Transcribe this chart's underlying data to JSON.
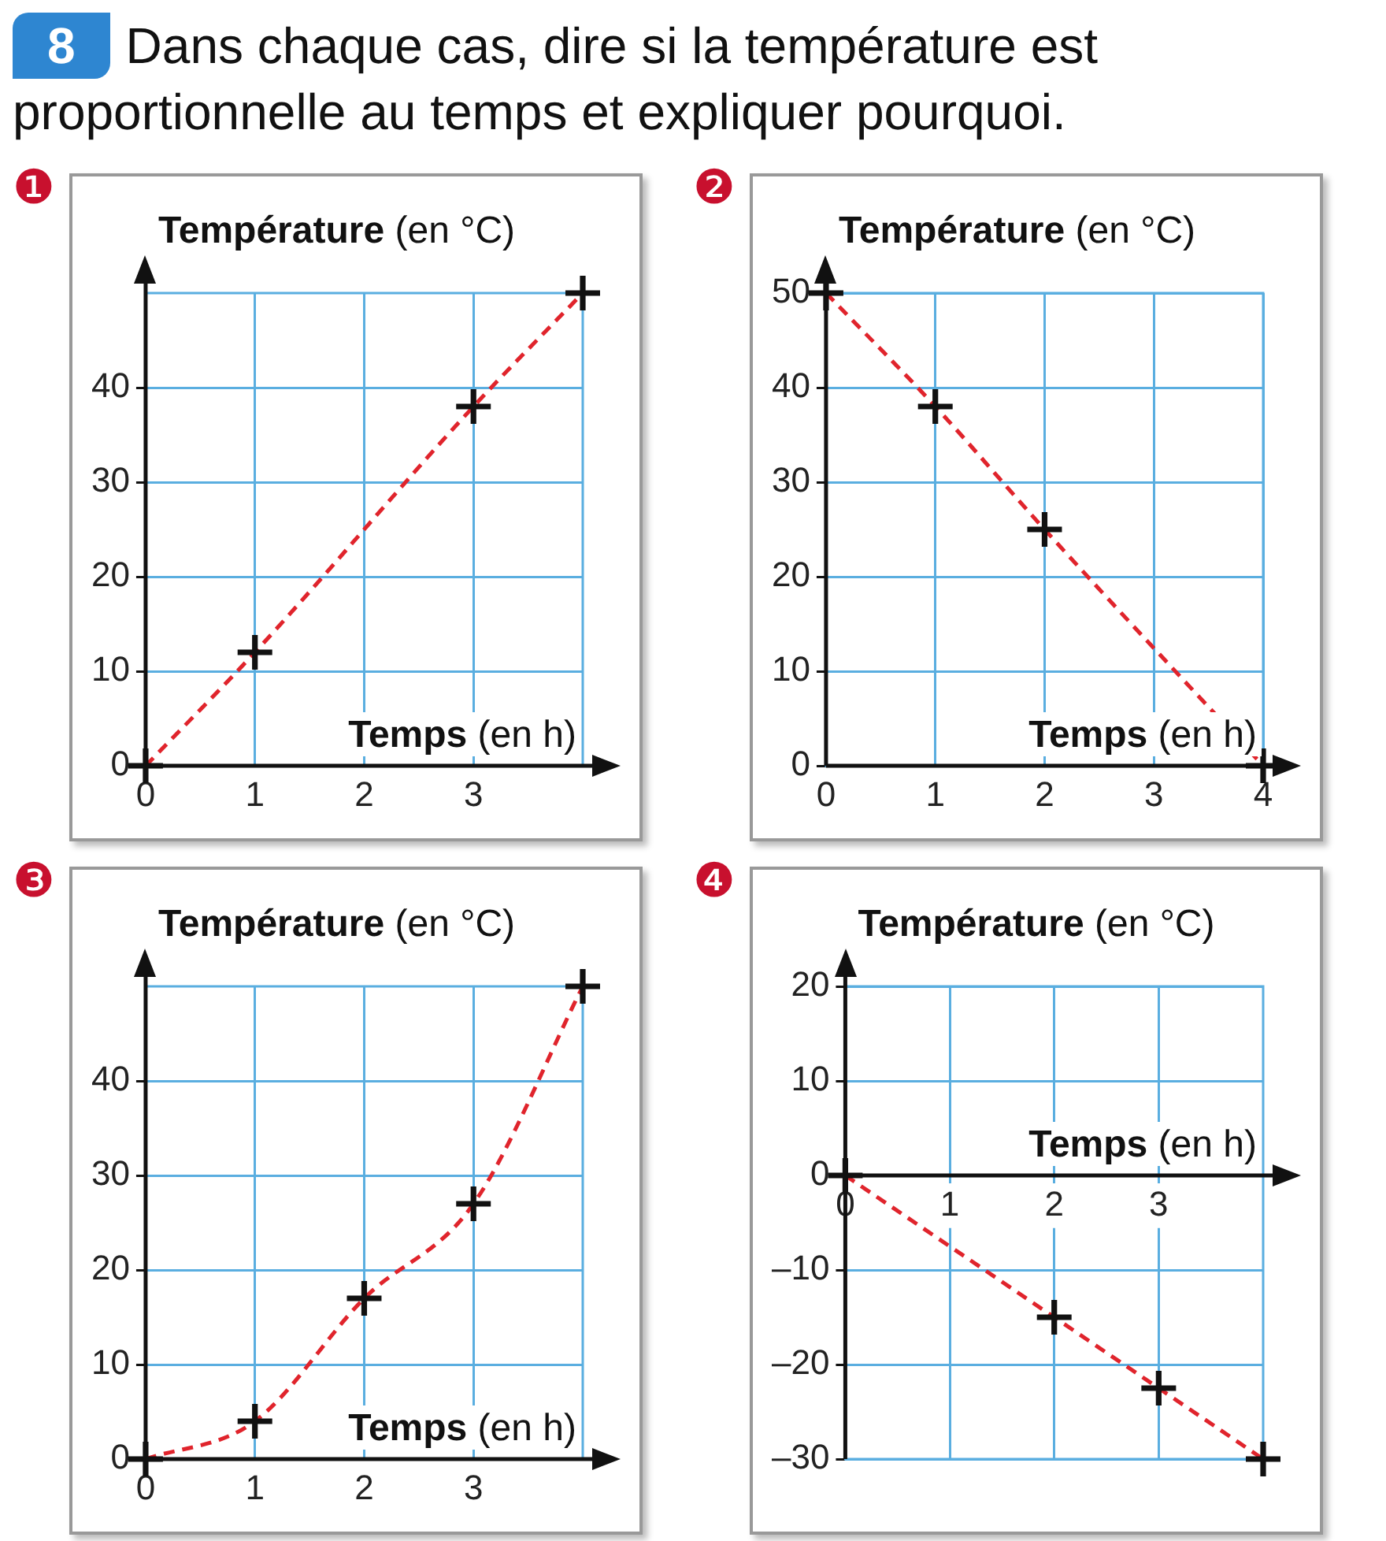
{
  "chart_data": [
    {
      "type": "line",
      "title": "❶",
      "annotations": [
        "8",
        "Dans chaque cas, dire si la température est proportionnelle au temps et expliquer pourquoi."
      ],
      "xlabel": "Temps (en h)",
      "ylabel": "Température (en °C)",
      "x": [
        0,
        1,
        3,
        4
      ],
      "xlim": [
        0,
        4
      ],
      "ylim": [
        0,
        50
      ],
      "xticks": [
        0,
        1,
        2,
        3
      ],
      "yticks": [
        0,
        10,
        20,
        30,
        40
      ],
      "grid": true,
      "line_style": "dashed",
      "series": [
        {
          "type": "line",
          "color": "#e0242c",
          "values": [
            0,
            12,
            38,
            50
          ],
          "marker": "none"
        },
        {
          "type": "scatter",
          "color": "#111111",
          "values": [
            0,
            12,
            38,
            50
          ],
          "marker": "cross"
        }
      ]
    },
    {
      "type": "line",
      "title": "❷",
      "xlabel": "Temps (en h)",
      "ylabel": "Température (en °C)",
      "x": [
        0,
        1,
        2,
        4
      ],
      "xlim": [
        0,
        4
      ],
      "ylim": [
        0,
        50
      ],
      "xticks": [
        0,
        1,
        2,
        3,
        4
      ],
      "yticks": [
        0,
        10,
        20,
        30,
        40,
        50
      ],
      "grid": true,
      "line_style": "dashed",
      "series": [
        {
          "type": "line",
          "color": "#e0242c",
          "values": [
            50,
            38,
            25,
            0
          ],
          "marker": "none"
        },
        {
          "type": "scatter",
          "color": "#111111",
          "values": [
            50,
            38,
            25,
            0
          ],
          "marker": "cross"
        }
      ]
    },
    {
      "type": "line",
      "title": "❸",
      "xlabel": "Temps (en h)",
      "ylabel": "Température (en °C)",
      "x": [
        0,
        1,
        2,
        3,
        4
      ],
      "xlim": [
        0,
        4
      ],
      "ylim": [
        0,
        50
      ],
      "xticks": [
        0,
        1,
        2,
        3
      ],
      "yticks": [
        0,
        10,
        20,
        30,
        40
      ],
      "grid": true,
      "line_style": "dashed",
      "series": [
        {
          "type": "line",
          "color": "#e0242c",
          "values": [
            0,
            4,
            17,
            27,
            50
          ],
          "marker": "none"
        },
        {
          "type": "scatter",
          "color": "#111111",
          "values": [
            0,
            4,
            17,
            27,
            50
          ],
          "marker": "cross"
        }
      ]
    },
    {
      "type": "line",
      "title": "❹",
      "xlabel": "Temps (en h)",
      "ylabel": "Température (en °C)",
      "x": [
        0,
        2,
        3,
        4
      ],
      "xlim": [
        0,
        4
      ],
      "ylim": [
        -30,
        20
      ],
      "xticks": [
        0,
        1,
        2,
        3
      ],
      "yticks": [
        {
          "value": -30,
          "label": "–30"
        },
        {
          "value": -20,
          "label": "–20"
        },
        {
          "value": -10,
          "label": "–10"
        },
        0,
        10,
        20
      ],
      "grid": true,
      "line_style": "dashed",
      "series": [
        {
          "type": "line",
          "color": "#e0242c",
          "values": [
            0,
            -15,
            -22.5,
            -30
          ],
          "marker": "none"
        },
        {
          "type": "scatter",
          "color": "#111111",
          "values": [
            0,
            -15,
            -22.5,
            -30
          ],
          "marker": "cross"
        }
      ]
    }
  ]
}
